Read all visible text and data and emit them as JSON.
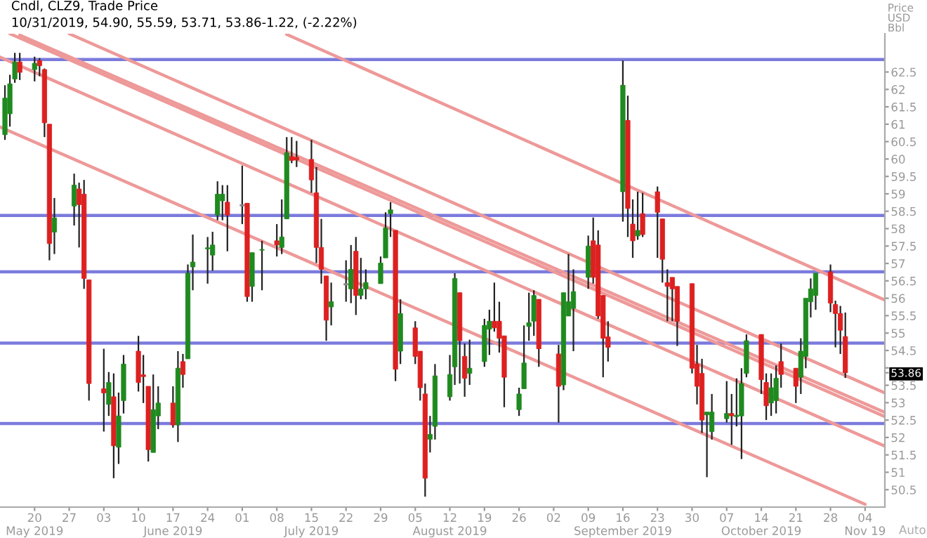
{
  "chart_data": {
    "type": "candlestick",
    "title": "Cndl, CLZ9, Trade Price",
    "subtitle": "10/31/2019, 54.90, 55.59, 53.71, 53.86-1.22, (-2.22%)",
    "ylabel": "Price\nUSD\nBbl",
    "x": [
      "2019-05-14",
      "2019-05-15",
      "2019-05-16",
      "2019-05-17",
      "2019-05-20",
      "2019-05-21",
      "2019-05-22",
      "2019-05-23",
      "2019-05-24",
      "2019-05-28",
      "2019-05-29",
      "2019-05-30",
      "2019-05-31",
      "2019-06-03",
      "2019-06-04",
      "2019-06-05",
      "2019-06-06",
      "2019-06-07",
      "2019-06-10",
      "2019-06-11",
      "2019-06-12",
      "2019-06-13",
      "2019-06-14",
      "2019-06-17",
      "2019-06-18",
      "2019-06-19",
      "2019-06-20",
      "2019-06-21",
      "2019-06-24",
      "2019-06-25",
      "2019-06-26",
      "2019-06-27",
      "2019-06-28",
      "2019-07-01",
      "2019-07-02",
      "2019-07-03",
      "2019-07-05",
      "2019-07-08",
      "2019-07-09",
      "2019-07-10",
      "2019-07-11",
      "2019-07-12",
      "2019-07-15",
      "2019-07-16",
      "2019-07-17",
      "2019-07-18",
      "2019-07-19",
      "2019-07-22",
      "2019-07-23",
      "2019-07-24",
      "2019-07-25",
      "2019-07-26",
      "2019-07-29",
      "2019-07-30",
      "2019-07-31",
      "2019-08-01",
      "2019-08-02",
      "2019-08-05",
      "2019-08-06",
      "2019-08-07",
      "2019-08-08",
      "2019-08-09",
      "2019-08-12",
      "2019-08-13",
      "2019-08-14",
      "2019-08-15",
      "2019-08-16",
      "2019-08-19",
      "2019-08-20",
      "2019-08-21",
      "2019-08-22",
      "2019-08-23",
      "2019-08-26",
      "2019-08-27",
      "2019-08-28",
      "2019-08-29",
      "2019-08-30",
      "2019-09-03",
      "2019-09-04",
      "2019-09-05",
      "2019-09-06",
      "2019-09-09",
      "2019-09-10",
      "2019-09-11",
      "2019-09-12",
      "2019-09-13",
      "2019-09-16",
      "2019-09-17",
      "2019-09-18",
      "2019-09-19",
      "2019-09-20",
      "2019-09-23",
      "2019-09-24",
      "2019-09-25",
      "2019-09-26",
      "2019-09-27",
      "2019-09-30",
      "2019-10-01",
      "2019-10-02",
      "2019-10-03",
      "2019-10-04",
      "2019-10-07",
      "2019-10-08",
      "2019-10-09",
      "2019-10-10",
      "2019-10-11",
      "2019-10-14",
      "2019-10-15",
      "2019-10-16",
      "2019-10-17",
      "2019-10-18",
      "2019-10-21",
      "2019-10-22",
      "2019-10-23",
      "2019-10-24",
      "2019-10-25",
      "2019-10-28",
      "2019-10-29",
      "2019-10-30",
      "2019-10-31"
    ],
    "ohlc": [
      [
        60.7,
        62.12,
        60.55,
        61.75
      ],
      [
        61.3,
        62.42,
        60.93,
        62.16
      ],
      [
        62.3,
        63.05,
        62.19,
        62.79
      ],
      [
        62.79,
        63.05,
        62.27,
        62.49
      ],
      [
        62.57,
        62.94,
        62.23,
        62.75
      ],
      [
        62.83,
        62.9,
        62.38,
        62.68
      ],
      [
        62.57,
        62.6,
        60.63,
        61.04
      ],
      [
        61.0,
        61.0,
        57.09,
        57.57
      ],
      [
        57.9,
        58.88,
        57.27,
        58.31
      ],
      [
        58.65,
        59.58,
        58.09,
        59.25
      ],
      [
        59.14,
        59.32,
        57.46,
        58.69
      ],
      [
        58.99,
        59.4,
        56.27,
        56.57
      ],
      [
        56.53,
        56.53,
        53.06,
        53.55
      ],
      [
        53.4,
        54.55,
        52.17,
        53.28
      ],
      [
        52.95,
        53.88,
        52.62,
        53.58
      ],
      [
        53.17,
        53.84,
        50.83,
        51.76
      ],
      [
        51.72,
        53.29,
        51.24,
        52.62
      ],
      [
        53.06,
        54.37,
        52.69,
        54.11
      ],
      [
        54.48,
        54.92,
        53.32,
        53.58
      ],
      [
        53.8,
        54.37,
        52.99,
        53.75
      ],
      [
        53.47,
        53.47,
        51.31,
        51.65
      ],
      [
        51.57,
        53.81,
        51.57,
        52.8
      ],
      [
        52.62,
        53.47,
        52.24,
        52.99
      ],
      [
        52.99,
        53.47,
        52.28,
        52.36
      ],
      [
        52.36,
        54.48,
        51.87,
        53.99
      ],
      [
        54.18,
        54.4,
        53.43,
        53.81
      ],
      [
        54.26,
        56.97,
        54.26,
        56.72
      ],
      [
        56.9,
        57.83,
        56.23,
        57.04
      ],
      [
        57.42,
        57.76,
        56.42,
        57.45
      ],
      [
        57.24,
        57.91,
        56.79,
        57.53
      ],
      [
        58.39,
        59.36,
        58.24,
        58.99
      ],
      [
        58.8,
        59.25,
        58.24,
        58.99
      ],
      [
        58.76,
        59.25,
        57.35,
        58.39
      ],
      [
        58.65,
        59.81,
        58.13,
        58.65
      ],
      [
        58.73,
        58.73,
        55.9,
        56.05
      ],
      [
        56.34,
        57.31,
        55.9,
        57.31
      ],
      [
        57.38,
        57.65,
        56.23,
        57.4
      ],
      [
        57.65,
        58.13,
        57.2,
        57.53
      ],
      [
        57.46,
        58.84,
        57.27,
        57.76
      ],
      [
        58.28,
        60.63,
        58.28,
        60.18
      ],
      [
        60.07,
        60.63,
        59.88,
        59.96
      ],
      [
        60.05,
        60.52,
        59.77,
        59.97
      ],
      [
        59.99,
        60.55,
        59.03,
        59.4
      ],
      [
        59.03,
        59.77,
        57.01,
        57.46
      ],
      [
        57.46,
        58.28,
        56.42,
        56.83
      ],
      [
        56.64,
        56.64,
        54.78,
        55.37
      ],
      [
        55.75,
        56.45,
        55.22,
        55.9
      ],
      [
        56.38,
        57.09,
        55.9,
        56.38
      ],
      [
        56.27,
        57.53,
        55.86,
        56.83
      ],
      [
        57.35,
        57.76,
        55.52,
        56.08
      ],
      [
        56.08,
        57.16,
        55.97,
        56.27
      ],
      [
        56.27,
        56.83,
        55.97,
        56.45
      ],
      [
        56.42,
        57.2,
        56.42,
        57.01
      ],
      [
        57.16,
        58.47,
        57.16,
        58.02
      ],
      [
        58.43,
        58.76,
        57.76,
        58.54
      ],
      [
        57.95,
        57.95,
        53.62,
        53.96
      ],
      [
        54.48,
        55.97,
        54.11,
        55.56
      ],
      [
        55.15,
        55.34,
        54.11,
        54.33
      ],
      [
        54.48,
        54.48,
        53.06,
        53.43
      ],
      [
        53.25,
        53.55,
        50.3,
        50.83
      ],
      [
        51.95,
        52.62,
        51.57,
        52.09
      ],
      [
        52.32,
        54.11,
        51.94,
        53.77
      ],
      [
        53.17,
        54.37,
        53.06,
        53.81
      ],
      [
        54.03,
        56.72,
        53.51,
        56.57
      ],
      [
        56.16,
        56.16,
        53.55,
        54.78
      ],
      [
        54.33,
        54.7,
        53.17,
        53.7
      ],
      [
        53.84,
        54.81,
        53.51,
        53.99
      ],
      [
        54.18,
        55.41,
        54.03,
        55.22
      ],
      [
        55.11,
        55.67,
        54.37,
        55.34
      ],
      [
        55.34,
        56.45,
        55.04,
        55.15
      ],
      [
        55.34,
        55.9,
        54.44,
        54.85
      ],
      [
        54.92,
        54.92,
        52.87,
        53.73
      ],
      [
        52.8,
        53.43,
        52.62,
        53.25
      ],
      [
        53.4,
        55.22,
        53.4,
        54.14
      ],
      [
        55.19,
        56.16,
        54.78,
        55.3
      ],
      [
        55.34,
        56.23,
        54.92,
        56.08
      ],
      [
        55.97,
        55.97,
        54.03,
        54.55
      ],
      [
        54.4,
        54.66,
        52.43,
        53.47
      ],
      [
        53.51,
        56.16,
        53.36,
        56.16
      ],
      [
        55.49,
        57.27,
        55.49,
        55.9
      ],
      [
        55.71,
        56.83,
        54.48,
        56.19
      ],
      [
        56.6,
        57.8,
        56.27,
        57.5
      ],
      [
        57.65,
        58.32,
        56.42,
        56.6
      ],
      [
        57.53,
        57.95,
        55.41,
        55.49
      ],
      [
        56.08,
        56.08,
        53.73,
        54.85
      ],
      [
        54.89,
        55.34,
        54.18,
        54.59
      ],
      [
        59.06,
        62.83,
        58.2,
        62.12
      ],
      [
        61.11,
        61.82,
        57.76,
        58.58
      ],
      [
        58.13,
        58.84,
        57.16,
        57.65
      ],
      [
        57.79,
        59.06,
        57.68,
        57.95
      ],
      [
        58.43,
        59.03,
        57.76,
        57.83
      ],
      [
        59.06,
        59.21,
        57.16,
        58.47
      ],
      [
        58.28,
        58.28,
        56.45,
        57.12
      ],
      [
        56.45,
        56.83,
        55.34,
        56.34
      ],
      [
        56.6,
        56.6,
        55.34,
        56.27
      ],
      [
        56.34,
        56.34,
        54.63,
        55.34
      ],
      [
        56.42,
        56.42,
        53.84,
        53.99
      ],
      [
        54.11,
        54.66,
        52.95,
        53.47
      ],
      [
        53.84,
        54.26,
        52.13,
        52.5
      ],
      [
        52.65,
        52.73,
        50.86,
        52.73
      ],
      [
        52.17,
        53.25,
        51.94,
        52.73
      ],
      [
        52.54,
        53.62,
        52.43,
        52.69
      ],
      [
        52.69,
        53.25,
        51.79,
        52.62
      ],
      [
        52.6,
        53.7,
        52.32,
        52.64
      ],
      [
        52.62,
        53.99,
        51.38,
        53.55
      ],
      [
        53.84,
        54.96,
        53.73,
        54.78
      ],
      [
        54.96,
        54.96,
        53.25,
        53.66
      ],
      [
        53.58,
        53.84,
        52.5,
        52.91
      ],
      [
        52.99,
        53.84,
        52.62,
        53.43
      ],
      [
        53.06,
        54.07,
        52.69,
        53.7
      ],
      [
        54.18,
        54.7,
        53.43,
        53.81
      ],
      [
        53.99,
        53.99,
        52.99,
        53.47
      ],
      [
        53.73,
        54.85,
        53.25,
        54.48
      ],
      [
        54.33,
        56.0,
        53.99,
        56.0
      ],
      [
        55.9,
        56.57,
        55.45,
        56.27
      ],
      [
        56.08,
        56.72,
        55.67,
        56.72
      ],
      [
        56.76,
        56.97,
        55.6,
        55.86
      ],
      [
        55.82,
        55.93,
        54.59,
        55.56
      ],
      [
        55.56,
        55.78,
        54.4,
        55.08
      ],
      [
        54.9,
        55.59,
        53.71,
        53.86
      ]
    ],
    "series": [
      {
        "type": "line",
        "color": "#ee9999",
        "x": [
          "2019-07-10",
          "2019-11-08"
        ],
        "values": [
          63.58,
          55.95
        ]
      },
      {
        "type": "line",
        "color": "#ee9999",
        "x": [
          "2019-05-27",
          "2019-11-08"
        ],
        "values": [
          63.6,
          53.28
        ]
      },
      {
        "type": "line",
        "color": "#ee9999",
        "x": [
          "2019-05-17",
          "2019-11-08"
        ],
        "values": [
          63.56,
          52.72
        ]
      },
      {
        "type": "line",
        "color": "#ee9999",
        "x": [
          "2019-05-15",
          "2019-11-08"
        ],
        "values": [
          63.6,
          52.6
        ]
      },
      {
        "type": "line",
        "color": "#ee9999",
        "x": [
          "2019-05-13",
          "2019-11-08"
        ],
        "values": [
          62.93,
          51.75
        ]
      },
      {
        "type": "line",
        "color": "#ee9999",
        "x": [
          "2019-05-13",
          "2019-11-04"
        ],
        "values": [
          60.92,
          50.08
        ]
      }
    ],
    "ref_lines": [
      {
        "axis": "y",
        "value": 62.86,
        "color": "#7b7bdd"
      },
      {
        "axis": "y",
        "value": 58.38,
        "color": "#7b7bdd"
      },
      {
        "axis": "y",
        "value": 56.76,
        "color": "#7b7bdd"
      },
      {
        "axis": "y",
        "value": 54.71,
        "color": "#7b7bdd"
      },
      {
        "axis": "y",
        "value": 52.4,
        "color": "#7b7bdd"
      }
    ],
    "annotations": [
      "Auto"
    ],
    "xlim": [
      "2019-05-13",
      "2019-11-08"
    ],
    "xticks": [
      {
        "value": "2019-05-20",
        "label": "20\nMay 2019"
      },
      {
        "value": "2019-05-27",
        "label": "27"
      },
      {
        "value": "2019-06-03",
        "label": "03"
      },
      {
        "value": "2019-06-10",
        "label": "10"
      },
      {
        "value": "2019-06-17",
        "label": "17\nJune 2019"
      },
      {
        "value": "2019-06-24",
        "label": "24"
      },
      {
        "value": "2019-07-01",
        "label": "01"
      },
      {
        "value": "2019-07-08",
        "label": "08"
      },
      {
        "value": "2019-07-15",
        "label": "15\nJuly 2019"
      },
      {
        "value": "2019-07-22",
        "label": "22"
      },
      {
        "value": "2019-07-29",
        "label": "29"
      },
      {
        "value": "2019-08-05",
        "label": "05"
      },
      {
        "value": "2019-08-12",
        "label": "12\nAugust 2019"
      },
      {
        "value": "2019-08-19",
        "label": "19"
      },
      {
        "value": "2019-08-26",
        "label": "26"
      },
      {
        "value": "2019-09-02",
        "label": "02"
      },
      {
        "value": "2019-09-09",
        "label": "09"
      },
      {
        "value": "2019-09-16",
        "label": "16\nSeptember 2019"
      },
      {
        "value": "2019-09-23",
        "label": "23"
      },
      {
        "value": "2019-09-30",
        "label": "30"
      },
      {
        "value": "2019-10-07",
        "label": "07"
      },
      {
        "value": "2019-10-14",
        "label": "14\nOctober 2019"
      },
      {
        "value": "2019-10-21",
        "label": "21"
      },
      {
        "value": "2019-10-28",
        "label": "28"
      },
      {
        "value": "2019-11-04",
        "label": "04\nNov 19"
      }
    ],
    "ylim": [
      50.0,
      63.6
    ],
    "yticks": [
      50.5,
      51,
      51.5,
      52,
      52.5,
      53,
      53.5,
      {
        "value": 53.86,
        "label": "53.86"
      },
      {
        "value": 54,
        "label": null
      },
      54.5,
      55,
      55.5,
      56,
      56.5,
      57,
      57.5,
      58,
      58.5,
      59,
      59.5,
      60,
      60.5,
      61,
      61.5,
      62,
      62.5
    ],
    "grid": false,
    "legend": false
  }
}
